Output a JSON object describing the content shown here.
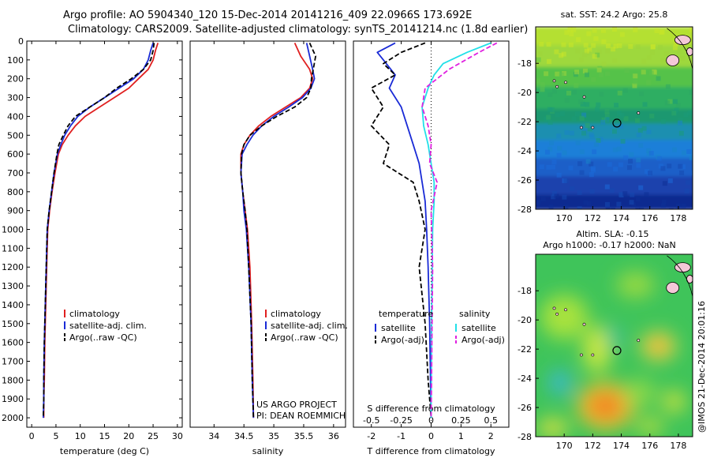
{
  "header": {
    "title1": "Argo profile: AO 5904340_120 15-Dec-2014 20141216_409 22.0966S 173.692E",
    "title2": "Climatology: CARS2009. Satellite-adjusted climatology: synTS_20141214.nc (1.8d earlier)"
  },
  "side_label": "@IMOS 21-Dec-2014 20:01:16",
  "colors": {
    "climatology": "#e02020",
    "satellite": "#1a2bd6",
    "argo": "#000000",
    "satellite_salinity": "#22e0e8",
    "argo_salinity_adj": "#e020e0"
  },
  "chart_data": [
    {
      "type": "line",
      "xlabel": "temperature (deg C)",
      "ylabel": "",
      "xlim": [
        -1,
        31
      ],
      "ylim": [
        2050,
        0
      ],
      "xticks": [
        0,
        5,
        10,
        15,
        20,
        25,
        30
      ],
      "yticks": [
        0,
        100,
        200,
        300,
        400,
        500,
        600,
        700,
        800,
        900,
        1000,
        1100,
        1200,
        1300,
        1400,
        1500,
        1600,
        1700,
        1800,
        1900,
        2000
      ],
      "legend": [
        "climatology",
        "satellite-adj. clim.",
        "Argo(..raw -QC)"
      ],
      "series": [
        {
          "name": "climatology",
          "style": "solid",
          "color": "#e02020",
          "x": [
            26,
            25.5,
            25,
            24,
            22,
            20,
            17,
            14,
            11,
            9,
            7.5,
            6.3,
            5.5,
            4.8,
            4.2,
            3.7,
            3.3,
            3.1,
            2.9,
            2.7,
            2.6,
            2.5,
            2.5
          ],
          "y": [
            10,
            50,
            100,
            150,
            200,
            250,
            300,
            350,
            400,
            450,
            500,
            550,
            600,
            700,
            800,
            900,
            1000,
            1200,
            1400,
            1600,
            1800,
            1900,
            2000
          ]
        },
        {
          "name": "satellite-adj. clim.",
          "style": "solid",
          "color": "#1a2bd6",
          "x": [
            25,
            24.5,
            24,
            23,
            21,
            18,
            15,
            12,
            9.5,
            8,
            6.8,
            6,
            5.3,
            4.6,
            4.1,
            3.6,
            3.2,
            3.0,
            2.8,
            2.6,
            2.5,
            2.5,
            2.4
          ],
          "y": [
            10,
            50,
            100,
            150,
            200,
            250,
            300,
            350,
            400,
            450,
            500,
            550,
            600,
            700,
            800,
            900,
            1000,
            1200,
            1400,
            1600,
            1800,
            1900,
            2000
          ]
        },
        {
          "name": "Argo(..raw -QC)",
          "style": "dashed",
          "color": "#000000",
          "x": [
            25.2,
            25,
            24.5,
            23,
            20.5,
            17.5,
            15,
            12,
            9,
            7.5,
            6.5,
            5.6,
            5.2,
            4.6,
            4.1,
            3.6,
            3.2,
            3.0,
            2.8,
            2.6,
            2.5,
            2.5,
            2.4
          ],
          "y": [
            10,
            50,
            100,
            150,
            200,
            250,
            300,
            350,
            400,
            450,
            500,
            550,
            600,
            700,
            800,
            900,
            1000,
            1200,
            1400,
            1600,
            1800,
            1900,
            2000
          ]
        }
      ]
    },
    {
      "type": "line",
      "xlabel": "salinity",
      "xlim": [
        33.6,
        36.2
      ],
      "ylim": [
        2050,
        0
      ],
      "xticks": [
        34,
        34.5,
        35,
        35.5,
        36
      ],
      "yticks": [],
      "legend": [
        "climatology",
        "satellite-adj. clim.",
        "Argo(..raw -QC)"
      ],
      "annotations": [
        "US ARGO PROJECT",
        "PI: DEAN ROEMMICH"
      ],
      "series": [
        {
          "name": "climatology",
          "style": "solid",
          "color": "#e02020",
          "x": [
            35.35,
            35.45,
            35.6,
            35.65,
            35.6,
            35.45,
            35.2,
            34.95,
            34.75,
            34.6,
            34.5,
            34.45,
            34.45,
            34.48,
            34.52,
            34.56,
            34.6,
            34.63,
            34.65,
            34.66
          ],
          "y": [
            10,
            80,
            150,
            200,
            250,
            300,
            350,
            400,
            450,
            500,
            550,
            600,
            700,
            800,
            900,
            1000,
            1200,
            1500,
            1800,
            2000
          ]
        },
        {
          "name": "satellite-adj. clim.",
          "style": "solid",
          "color": "#1a2bd6",
          "x": [
            35.55,
            35.6,
            35.65,
            35.68,
            35.62,
            35.48,
            35.25,
            35.0,
            34.8,
            34.65,
            34.55,
            34.47,
            34.45,
            34.48,
            34.5,
            34.54,
            34.58,
            34.62,
            34.64,
            34.66
          ],
          "y": [
            10,
            80,
            150,
            200,
            250,
            300,
            350,
            400,
            450,
            500,
            550,
            600,
            700,
            800,
            900,
            1000,
            1200,
            1500,
            1800,
            2000
          ]
        },
        {
          "name": "Argo(..raw -QC)",
          "style": "dashed",
          "color": "#000000",
          "x": [
            35.6,
            35.7,
            35.66,
            35.63,
            35.62,
            35.55,
            35.35,
            35.05,
            34.8,
            34.6,
            34.5,
            34.46,
            34.45,
            34.48,
            34.52,
            34.55,
            34.58,
            34.62,
            34.64,
            34.66
          ],
          "y": [
            10,
            80,
            150,
            200,
            250,
            300,
            350,
            400,
            450,
            500,
            550,
            600,
            700,
            800,
            900,
            1000,
            1200,
            1500,
            1800,
            2000
          ]
        }
      ]
    },
    {
      "type": "line",
      "xlabel": "T difference from climatology",
      "xlabel_top": "S difference from climatology",
      "xlim": [
        -2.6,
        2.6
      ],
      "ylim": [
        2050,
        0
      ],
      "xticks": [
        -2,
        -1,
        0,
        1,
        2
      ],
      "xticks_top": [
        "-0.5",
        "-0.25",
        "0",
        "0.25",
        "0.5"
      ],
      "legend_groups": {
        "temperature": [
          "satellite",
          "Argo(-adj)"
        ],
        "salinity": [
          "satellite",
          "Argo(-adj)"
        ]
      },
      "series": [
        {
          "name": "satellite",
          "group": "temperature",
          "style": "solid",
          "color": "#1a2bd6",
          "x": [
            -1.2,
            -1.8,
            -1.5,
            -1.2,
            -1.4,
            -1.0,
            -0.8,
            -0.6,
            -0.4,
            -0.3,
            -0.2,
            -0.15,
            -0.1,
            -0.05,
            -0.02,
            0
          ],
          "y": [
            10,
            60,
            120,
            180,
            250,
            350,
            450,
            550,
            650,
            750,
            850,
            1000,
            1200,
            1500,
            1800,
            2000
          ]
        },
        {
          "name": "Argo(-adj)",
          "group": "temperature",
          "style": "dashed",
          "color": "#000000",
          "x": [
            -0.2,
            -1.0,
            -1.6,
            -1.2,
            -2.0,
            -1.6,
            -2.0,
            -1.4,
            -1.6,
            -0.6,
            -0.4,
            -0.2,
            -0.4,
            -0.2,
            -0.1,
            0
          ],
          "y": [
            10,
            60,
            120,
            180,
            250,
            350,
            450,
            550,
            650,
            750,
            850,
            1000,
            1200,
            1500,
            1800,
            2000
          ]
        },
        {
          "name": "satellite",
          "group": "salinity",
          "style": "solid",
          "color": "#22e0e8",
          "x": [
            2.0,
            1.2,
            0.4,
            0.1,
            -0.1,
            -0.3,
            -0.25,
            -0.1,
            0.0,
            0.1,
            0.1,
            0.05,
            0.02,
            0
          ],
          "y": [
            10,
            60,
            120,
            180,
            250,
            350,
            450,
            550,
            650,
            750,
            850,
            1000,
            1400,
            2000
          ]
        },
        {
          "name": "Argo(-adj)",
          "group": "salinity",
          "style": "dashed",
          "color": "#e020e0",
          "x": [
            2.2,
            1.6,
            0.6,
            -0.2,
            -0.3,
            -0.1,
            0.0,
            -0.05,
            0.2,
            0.0,
            0.05,
            0.0
          ],
          "y": [
            10,
            60,
            150,
            250,
            350,
            450,
            550,
            650,
            750,
            900,
            1200,
            2000
          ]
        }
      ]
    },
    {
      "type": "heatmap",
      "title": "sat. SST: 24.2 Argo: 25.8",
      "xlim": [
        168,
        179
      ],
      "ylim": [
        -28,
        -15.5
      ],
      "xticks": [
        170,
        172,
        174,
        176,
        178
      ],
      "yticks": [
        -18,
        -20,
        -22,
        -24,
        -26,
        -28
      ],
      "marker": {
        "lon": 173.692,
        "lat": -22.0966
      }
    },
    {
      "type": "heatmap",
      "title": "Altim. SLA: -0.15",
      "subtitle": "Argo h1000: -0.17 h2000: NaN",
      "xlim": [
        168,
        179
      ],
      "ylim": [
        -28,
        -15.5
      ],
      "xticks": [
        170,
        172,
        174,
        176,
        178
      ],
      "yticks": [
        -18,
        -20,
        -22,
        -24,
        -26,
        -28
      ],
      "marker": {
        "lon": 173.692,
        "lat": -22.0966
      }
    }
  ]
}
